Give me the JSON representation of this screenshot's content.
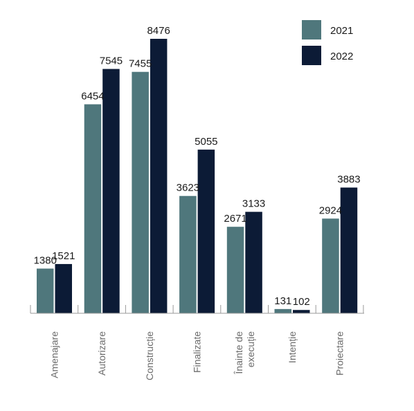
{
  "chart_data": {
    "type": "bar",
    "categories": [
      "Amenajare",
      "Autorizare",
      "Construcție",
      "Finalizate",
      "Înainte de execuție",
      "Intenție",
      "Proiectare"
    ],
    "category_lines": [
      [
        "Amenajare"
      ],
      [
        "Autorizare"
      ],
      [
        "Construcție"
      ],
      [
        "Finalizate"
      ],
      [
        "Înainte de",
        "execuție"
      ],
      [
        "Intenție"
      ],
      [
        "Proiectare"
      ]
    ],
    "series": [
      {
        "name": "2021",
        "color": "#4f777c",
        "values": [
          1380,
          6454,
          7455,
          3623,
          2671,
          131,
          2924
        ]
      },
      {
        "name": "2022",
        "color": "#0c1b36",
        "values": [
          1521,
          7545,
          8476,
          5055,
          3133,
          102,
          3883
        ]
      }
    ],
    "title": "",
    "xlabel": "",
    "ylabel": "",
    "ylim": [
      0,
      8476
    ],
    "grid": false,
    "legend": "top-right",
    "axis_color": "#9a9a9a"
  }
}
